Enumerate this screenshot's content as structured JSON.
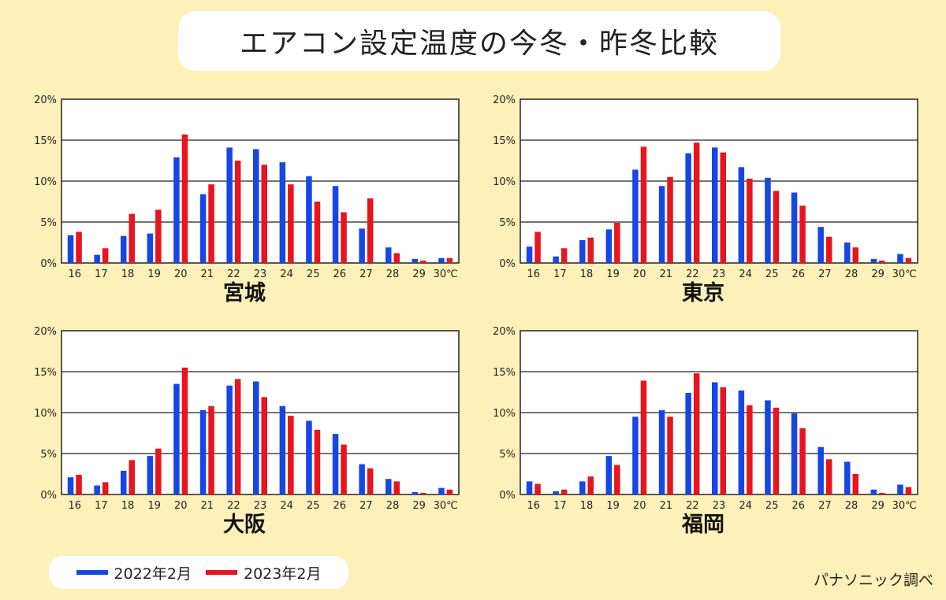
{
  "title": "エアコン設定温度の今冬・昨冬比較",
  "legend": {
    "series_2022": "2022年2月",
    "series_2023": "2023年2月"
  },
  "credit": "パナソニック調べ",
  "colors": {
    "series_2022": "#1447e6",
    "series_2023": "#e8141e"
  },
  "chart_data": [
    {
      "type": "bar",
      "title": "宮城",
      "categories": [
        "16",
        "17",
        "18",
        "19",
        "20",
        "21",
        "22",
        "23",
        "24",
        "25",
        "26",
        "27",
        "28",
        "29",
        "30℃"
      ],
      "yticks": [
        "0%",
        "5%",
        "10%",
        "15%",
        "20%"
      ],
      "ylim": [
        0,
        20
      ],
      "series": [
        {
          "name": "2022年2月",
          "values": [
            3.4,
            1.0,
            3.3,
            3.6,
            12.9,
            8.4,
            14.1,
            13.9,
            12.3,
            10.6,
            9.4,
            4.2,
            1.9,
            0.5,
            0.6
          ]
        },
        {
          "name": "2023年2月",
          "values": [
            3.8,
            1.8,
            6.0,
            6.5,
            15.7,
            9.6,
            12.5,
            12.0,
            9.6,
            7.5,
            6.2,
            7.9,
            1.2,
            0.3,
            0.6
          ]
        }
      ]
    },
    {
      "type": "bar",
      "title": "東京",
      "categories": [
        "16",
        "17",
        "18",
        "19",
        "20",
        "21",
        "22",
        "23",
        "24",
        "25",
        "26",
        "27",
        "28",
        "29",
        "30℃"
      ],
      "yticks": [
        "0%",
        "5%",
        "10%",
        "15%",
        "20%"
      ],
      "ylim": [
        0,
        20
      ],
      "series": [
        {
          "name": "2022年2月",
          "values": [
            2.0,
            0.8,
            2.8,
            4.1,
            11.4,
            9.4,
            13.4,
            14.1,
            11.7,
            10.4,
            8.6,
            4.4,
            2.5,
            0.5,
            1.1
          ]
        },
        {
          "name": "2023年2月",
          "values": [
            3.8,
            1.8,
            3.1,
            4.9,
            14.2,
            10.5,
            14.7,
            13.5,
            10.3,
            8.8,
            7.0,
            3.2,
            1.9,
            0.3,
            0.6
          ]
        }
      ]
    },
    {
      "type": "bar",
      "title": "大阪",
      "categories": [
        "16",
        "17",
        "18",
        "19",
        "20",
        "21",
        "22",
        "23",
        "24",
        "25",
        "26",
        "27",
        "28",
        "29",
        "30℃"
      ],
      "yticks": [
        "0%",
        "5%",
        "10%",
        "15%",
        "20%"
      ],
      "ylim": [
        0,
        20
      ],
      "series": [
        {
          "name": "2022年2月",
          "values": [
            2.1,
            1.1,
            2.9,
            4.7,
            13.5,
            10.3,
            13.3,
            13.8,
            10.8,
            9.0,
            7.4,
            3.7,
            1.9,
            0.3,
            0.8
          ]
        },
        {
          "name": "2023年2月",
          "values": [
            2.4,
            1.5,
            4.2,
            5.6,
            15.5,
            10.8,
            14.1,
            11.9,
            9.6,
            7.9,
            6.1,
            3.2,
            1.6,
            0.2,
            0.6
          ]
        }
      ]
    },
    {
      "type": "bar",
      "title": "福岡",
      "categories": [
        "16",
        "17",
        "18",
        "19",
        "20",
        "21",
        "22",
        "23",
        "24",
        "25",
        "26",
        "27",
        "28",
        "29",
        "30℃"
      ],
      "yticks": [
        "0%",
        "5%",
        "10%",
        "15%",
        "20%"
      ],
      "ylim": [
        0,
        20
      ],
      "series": [
        {
          "name": "2022年2月",
          "values": [
            1.6,
            0.4,
            1.6,
            4.7,
            9.5,
            10.3,
            12.4,
            13.7,
            12.7,
            11.5,
            9.9,
            5.8,
            4.0,
            0.6,
            1.2
          ]
        },
        {
          "name": "2023年2月",
          "values": [
            1.3,
            0.6,
            2.2,
            3.6,
            13.9,
            9.5,
            14.8,
            13.1,
            10.9,
            10.6,
            8.1,
            4.3,
            2.5,
            0.2,
            0.9
          ]
        }
      ]
    }
  ]
}
